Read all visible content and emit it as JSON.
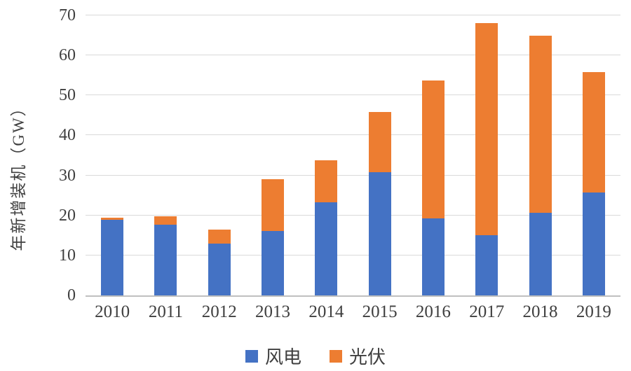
{
  "chart_data": {
    "type": "bar",
    "stacked": true,
    "title": "",
    "xlabel": "",
    "ylabel": "年新增装机（GW）",
    "ylim": [
      0,
      70
    ],
    "ytick_step": 10,
    "grid": true,
    "legend_position": "bottom",
    "categories": [
      "2010",
      "2011",
      "2012",
      "2013",
      "2014",
      "2015",
      "2016",
      "2017",
      "2018",
      "2019"
    ],
    "series": [
      {
        "name": "风电",
        "color": "#4472C4",
        "values": [
          18.9,
          17.6,
          13.0,
          16.1,
          23.2,
          30.8,
          19.3,
          15.0,
          20.6,
          25.7
        ]
      },
      {
        "name": "光伏",
        "color": "#ED7D31",
        "values": [
          0.5,
          2.1,
          3.5,
          13.0,
          10.6,
          15.1,
          34.5,
          53.1,
          44.3,
          30.1
        ]
      }
    ]
  },
  "colors": {
    "wind": "#4472C4",
    "solar": "#ED7D31",
    "gridline": "#d9d9d9",
    "axis_line": "#bfbfbf",
    "text": "#3f3f3f",
    "background": "#ffffff"
  }
}
